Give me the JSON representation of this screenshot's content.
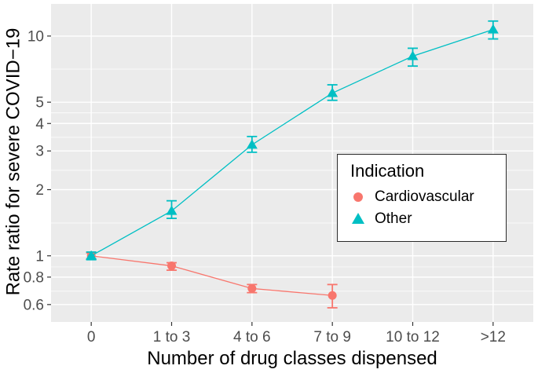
{
  "chart_data": {
    "type": "line",
    "title": "",
    "xlabel": "Number of drug classes dispensed",
    "ylabel": "Rate ratio for severe COVID−19",
    "x_categories": [
      "0",
      "1 to 3",
      "4 to 6",
      "7 to 9",
      "10 to 12",
      ">12"
    ],
    "y_scale": "log10",
    "ylim": [
      0.5,
      14
    ],
    "y_major_ticks": [
      0.6,
      0.8,
      1,
      2,
      3,
      4,
      5,
      10
    ],
    "y_minor_ticks": [
      0.69,
      0.89,
      1.41,
      2.45,
      3.46,
      4.47,
      7.07
    ],
    "grid": "on",
    "panel_bg": "#EBEBEB",
    "grid_color": "#FFFFFF",
    "tick_color": "#333333",
    "tick_label_color": "#4D4D4D",
    "series": [
      {
        "name": "Cardiovascular",
        "marker": "circle",
        "color": "#F8766D",
        "values": [
          1.0,
          0.9,
          0.71,
          0.66,
          null,
          null
        ],
        "ci_low": [
          0.97,
          0.86,
          0.68,
          0.58,
          null,
          null
        ],
        "ci_high": [
          1.03,
          0.93,
          0.74,
          0.74,
          null,
          null
        ]
      },
      {
        "name": "Other",
        "marker": "triangle",
        "color": "#00BFC4",
        "values": [
          1.0,
          1.6,
          3.2,
          5.5,
          8.1,
          10.7
        ],
        "ci_low": [
          0.96,
          1.48,
          2.96,
          5.1,
          7.3,
          9.7
        ],
        "ci_high": [
          1.04,
          1.78,
          3.49,
          6.0,
          8.8,
          11.7
        ]
      }
    ],
    "legend": {
      "title": "Indication",
      "position": "inside-right"
    }
  }
}
